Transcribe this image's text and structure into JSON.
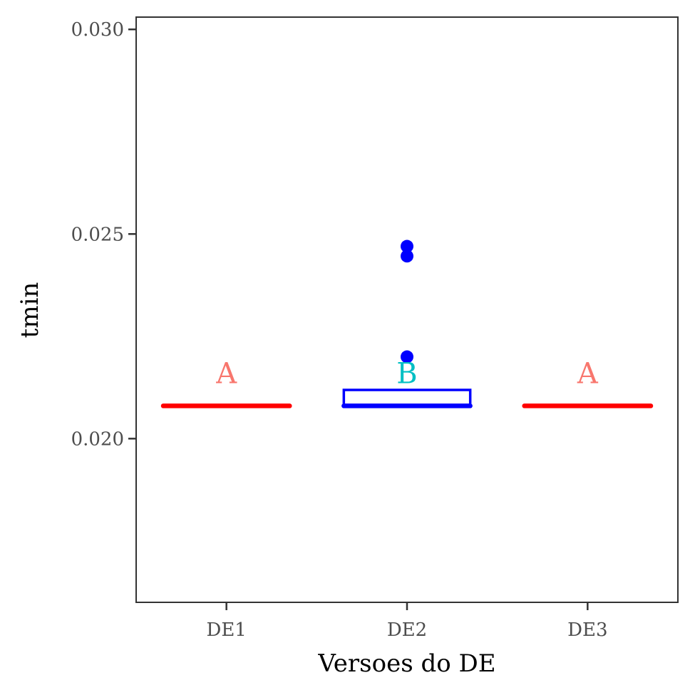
{
  "chart_data": {
    "type": "boxplot",
    "title": "",
    "xlabel": "Versoes do DE",
    "ylabel": "tmin",
    "ylim": [
      0.016,
      0.0303
    ],
    "yticks": [
      0.02,
      0.025,
      0.03
    ],
    "ytick_labels": [
      "0.020",
      "0.025",
      "0.030"
    ],
    "grid": false,
    "categories": [
      "DE1",
      "DE2",
      "DE3"
    ],
    "boxes": [
      {
        "category": "DE1",
        "min": 0.0208,
        "q1": 0.0208,
        "median": 0.0208,
        "q3": 0.0208,
        "max": 0.0208,
        "outliers": [],
        "color": "#ff0000",
        "letter": "A",
        "letter_color": "#f8766d"
      },
      {
        "category": "DE2",
        "min": 0.0208,
        "q1": 0.0208,
        "median": 0.0208,
        "q3": 0.02119,
        "max": 0.02119,
        "outliers": [
          0.0247,
          0.02446,
          0.022
        ],
        "color": "#0000ff",
        "letter": "B",
        "letter_color": "#00bfc4"
      },
      {
        "category": "DE3",
        "min": 0.0208,
        "q1": 0.0208,
        "median": 0.0208,
        "q3": 0.0208,
        "max": 0.0208,
        "outliers": [],
        "color": "#ff0000",
        "letter": "A",
        "letter_color": "#f8766d"
      }
    ],
    "letter_y": 0.0216
  }
}
